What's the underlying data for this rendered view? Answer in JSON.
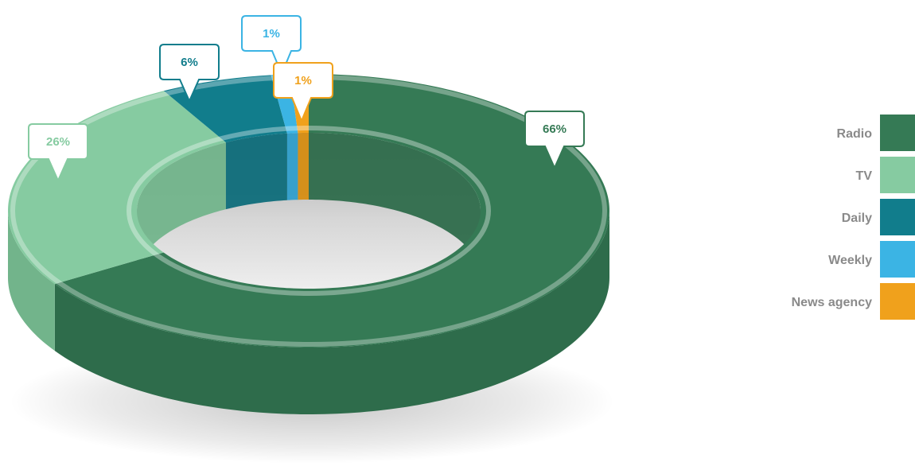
{
  "chart_data": {
    "type": "pie",
    "title": "",
    "donut": true,
    "legend_position": "right",
    "series": [
      {
        "name": "Radio",
        "value": 66,
        "label": "66%",
        "color": "#357a55",
        "side_color": "#2e6c4b"
      },
      {
        "name": "TV",
        "value": 26,
        "label": "26%",
        "color": "#86cba1",
        "side_color": "#72b48b"
      },
      {
        "name": "Daily",
        "value": 6,
        "label": "6%",
        "color": "#117d8c",
        "side_color": "#0e6d7a"
      },
      {
        "name": "Weekly",
        "value": 1,
        "label": "1%",
        "color": "#3bb4e4",
        "side_color": "#2f9ecb"
      },
      {
        "name": "News agency",
        "value": 1,
        "label": "1%",
        "color": "#f0a11c",
        "side_color": "#d68d12"
      }
    ]
  }
}
